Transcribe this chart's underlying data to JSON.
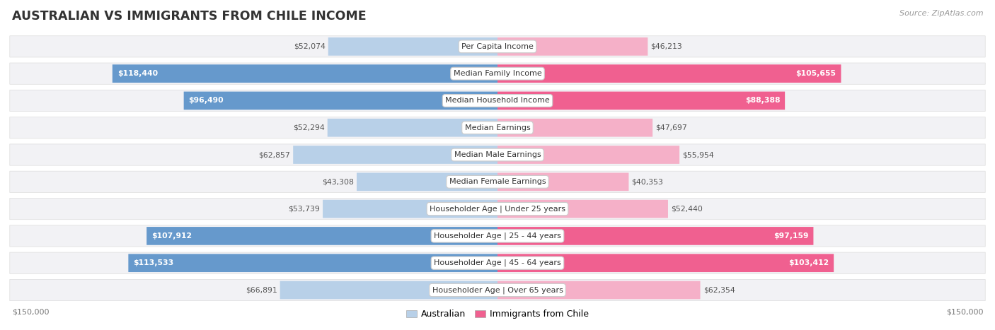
{
  "title": "AUSTRALIAN VS IMMIGRANTS FROM CHILE INCOME",
  "source": "Source: ZipAtlas.com",
  "categories": [
    "Per Capita Income",
    "Median Family Income",
    "Median Household Income",
    "Median Earnings",
    "Median Male Earnings",
    "Median Female Earnings",
    "Householder Age | Under 25 years",
    "Householder Age | 25 - 44 years",
    "Householder Age | 45 - 64 years",
    "Householder Age | Over 65 years"
  ],
  "australian_values": [
    52074,
    118440,
    96490,
    52294,
    62857,
    43308,
    53739,
    107912,
    113533,
    66891
  ],
  "chile_values": [
    46213,
    105655,
    88388,
    47697,
    55954,
    40353,
    52440,
    97159,
    103412,
    62354
  ],
  "australian_labels": [
    "$52,074",
    "$118,440",
    "$96,490",
    "$52,294",
    "$62,857",
    "$43,308",
    "$53,739",
    "$107,912",
    "$113,533",
    "$66,891"
  ],
  "chile_labels": [
    "$46,213",
    "$105,655",
    "$88,388",
    "$47,697",
    "$55,954",
    "$40,353",
    "$52,440",
    "$97,159",
    "$103,412",
    "$62,354"
  ],
  "max_value": 150000,
  "australian_color_light": "#b8d0e8",
  "australian_color_dark": "#6699cc",
  "chile_color_light": "#f5b0c8",
  "chile_color_dark": "#f06090",
  "row_bg_color": "#f2f2f5",
  "highlight_rows": [
    1,
    2,
    7,
    8
  ],
  "label_inside_color": "white",
  "label_outside_color": "#555555",
  "title_color": "#333333",
  "source_color": "#999999",
  "bottom_label_color": "#777777"
}
